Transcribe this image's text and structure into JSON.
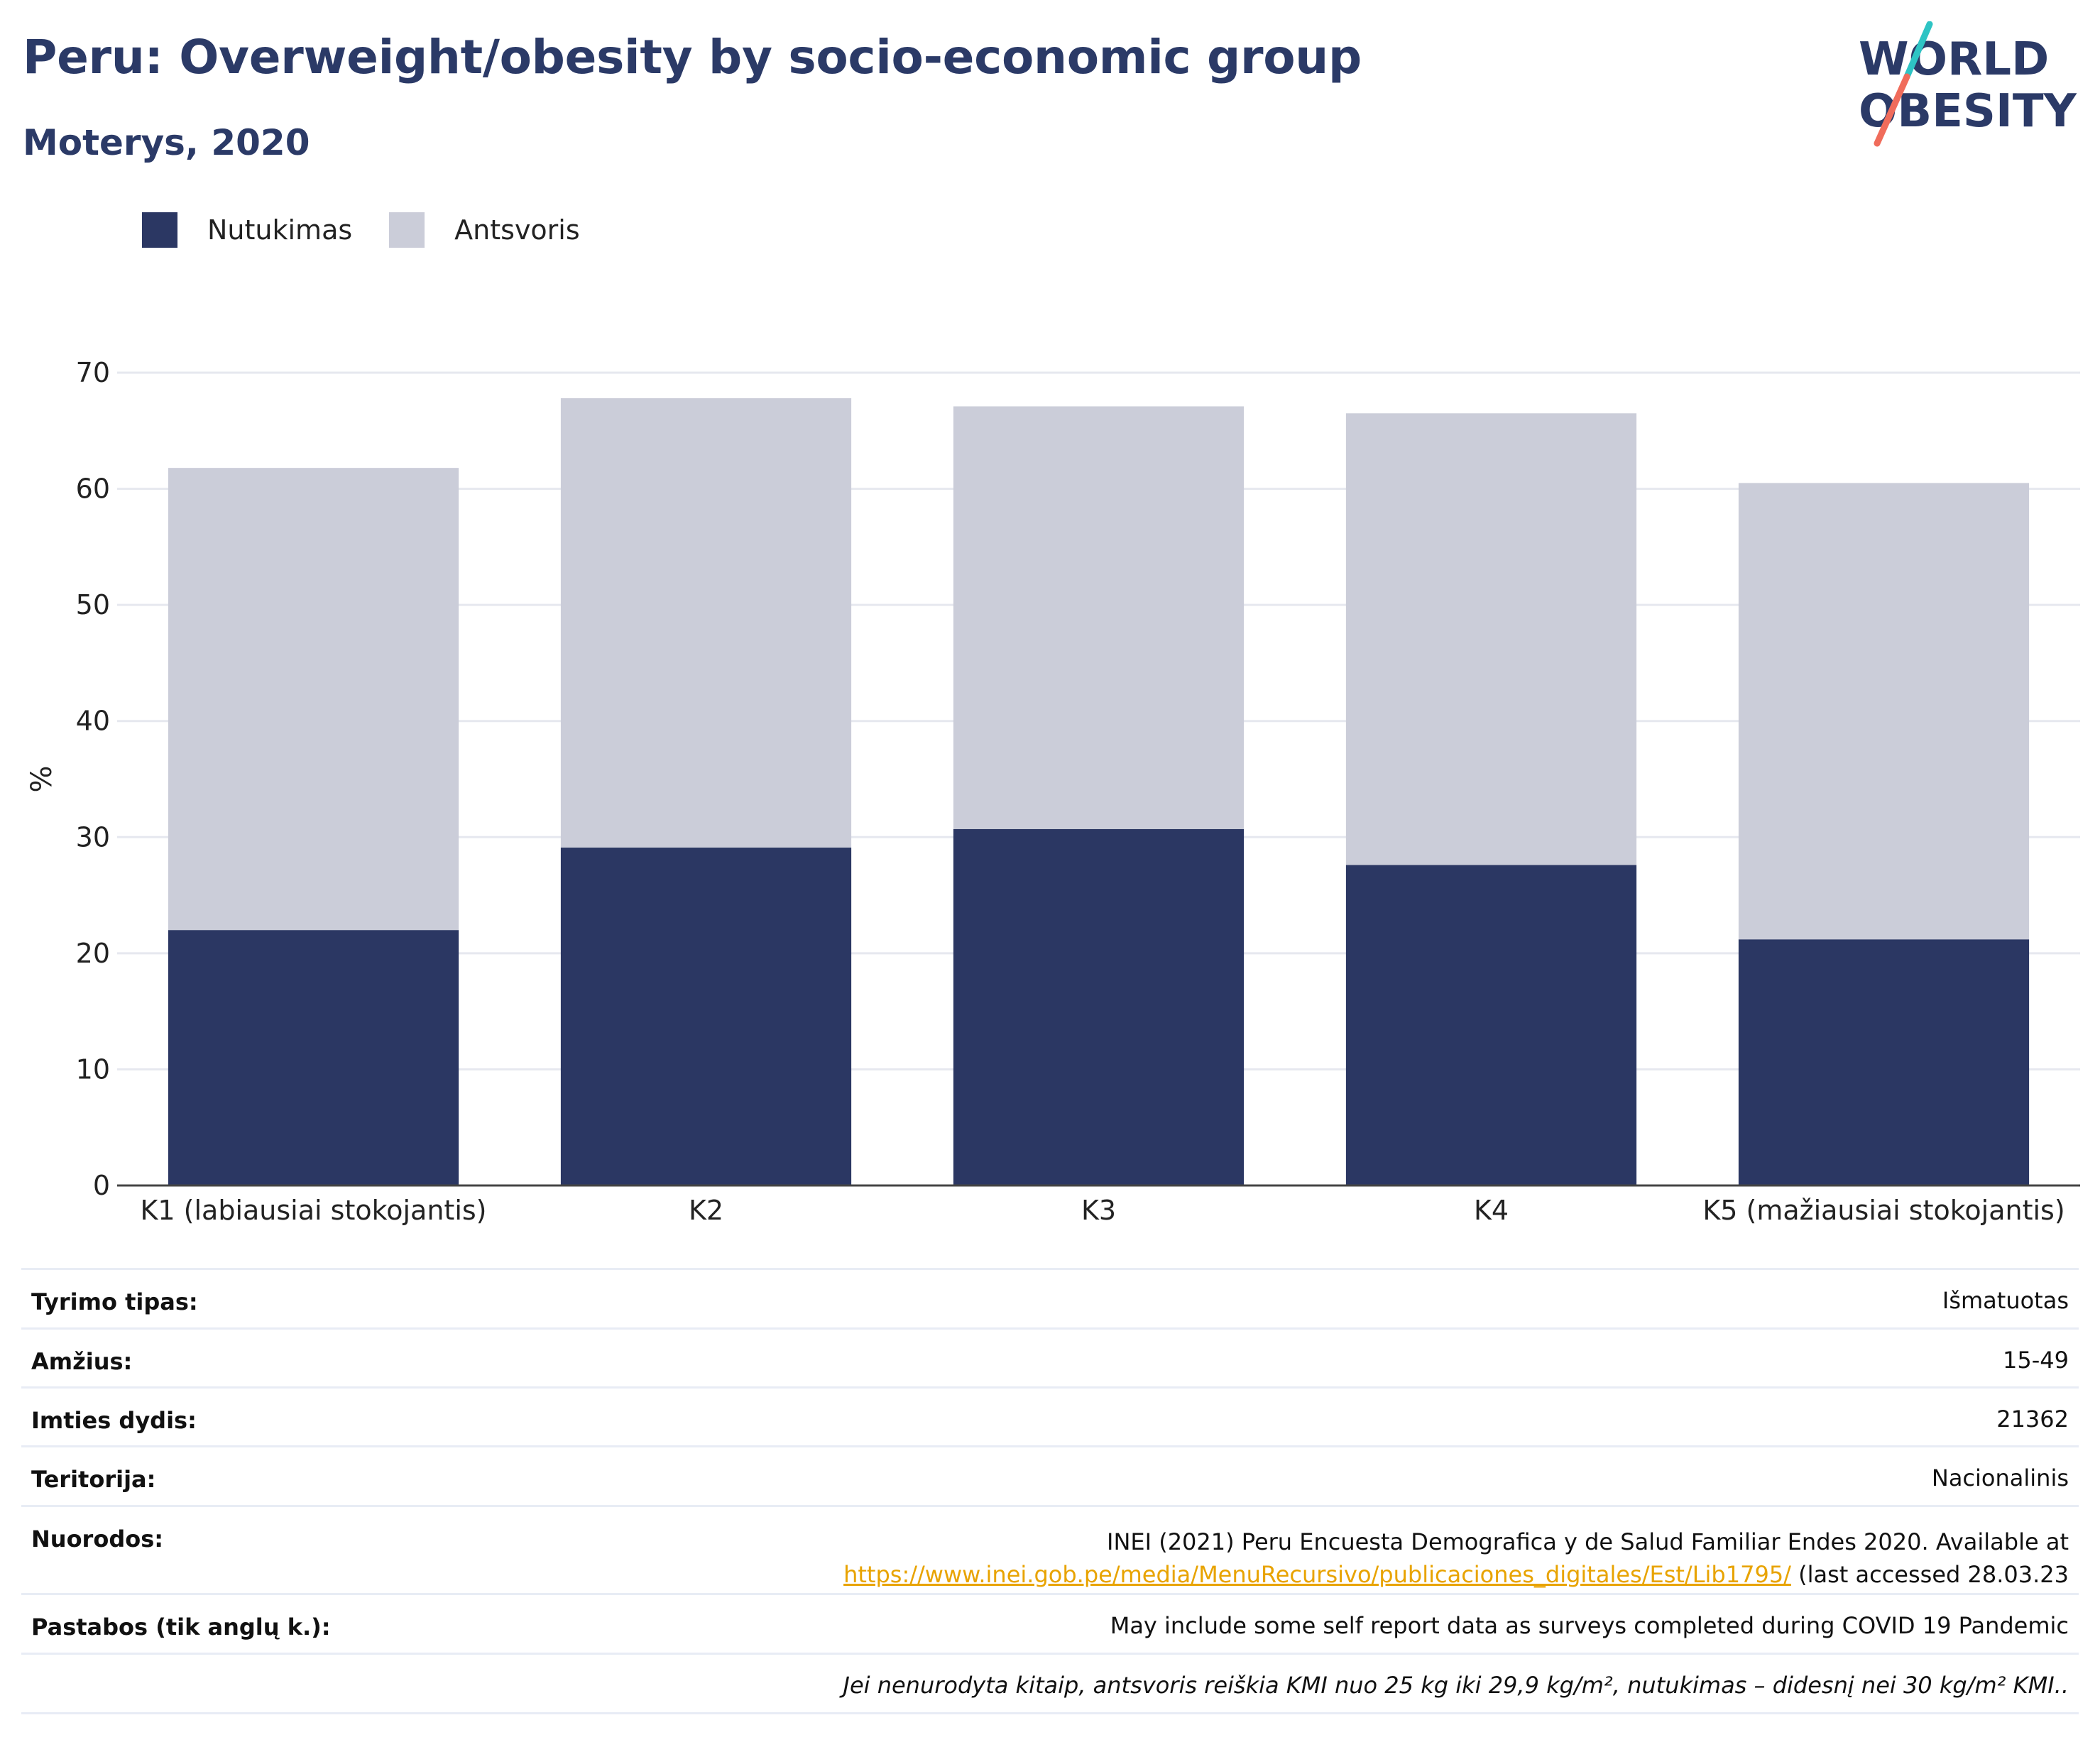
{
  "header": {
    "title": "Peru: Overweight/obesity by socio-economic group",
    "subtitle": "Moterys, 2020"
  },
  "logo": {
    "text_line1": "WORLD",
    "text_line2": "OBESITY",
    "color_text": "#2b3a67",
    "color_teal": "#2ec4c4",
    "color_coral": "#f06c5b"
  },
  "legend": {
    "items": [
      {
        "label": "Nutukimas",
        "color": "#2b3763"
      },
      {
        "label": "Antsvoris",
        "color": "#cbcdd9"
      }
    ]
  },
  "chart_data": {
    "type": "bar",
    "stacked": true,
    "categories": [
      "K1 (labiausiai stokojantis)",
      "K2",
      "K3",
      "K4",
      "K5 (mažiausiai stokojantis)"
    ],
    "series": [
      {
        "name": "Nutukimas",
        "color": "#2b3763",
        "values": [
          22.0,
          29.1,
          30.7,
          27.6,
          21.2
        ]
      },
      {
        "name": "Antsvoris",
        "color": "#cbcdd9",
        "values": [
          39.8,
          38.7,
          36.4,
          38.9,
          39.3
        ]
      }
    ],
    "ylabel": "%",
    "xlabel": "",
    "ylim": [
      0,
      70
    ],
    "yticks": [
      0,
      10,
      20,
      30,
      40,
      50,
      60,
      70
    ],
    "grid": true,
    "legend_position": "top-left"
  },
  "meta": {
    "study_type_label": "Tyrimo tipas:",
    "study_type_value": "Išmatuotas",
    "age_label": "Amžius:",
    "age_value": "15-49",
    "sample_label": "Imties dydis:",
    "sample_value": "21362",
    "territory_label": "Teritorija:",
    "territory_value": "Nacionalinis",
    "refs_label": "Nuorodos:",
    "refs_text": "INEI (2021) Peru Encuesta Demografica y de Salud Familiar Endes 2020. Available at",
    "refs_link": "https://www.inei.gob.pe/media/MenuRecursivo/publicaciones_digitales/Est/Lib1795/",
    "refs_suffix": " (last accessed 28.03.23",
    "notes_label": "Pastabos (tik anglų k.):",
    "notes_value": "May include some self report data as surveys completed during COVID 19 Pandemic",
    "definition_note": "Jei nenurodyta kitaip, antsvoris reiškia KMI nuo 25 kg iki 29,9 kg/m², nutukimas – didesnį nei 30 kg/m² KMI.."
  }
}
